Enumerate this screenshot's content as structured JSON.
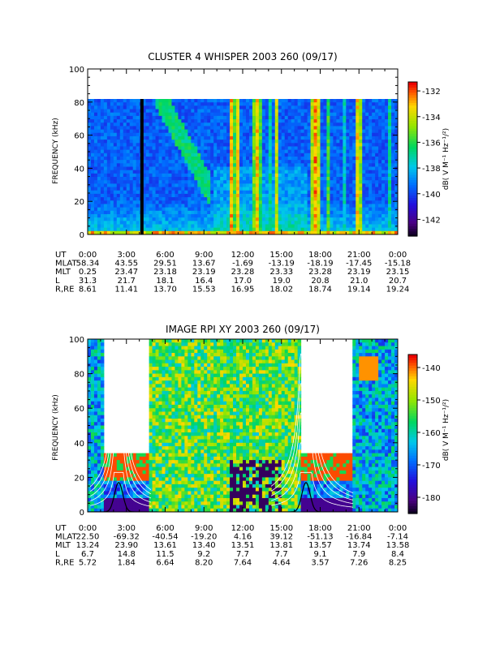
{
  "chart_data": [
    {
      "type": "heatmap",
      "title": "CLUSTER 4 WHISPER 2003 260 (09/17)",
      "ylabel": "FREQUENCY (kHz)",
      "ylim": [
        0,
        100
      ],
      "y_ticks": [
        "0",
        "20",
        "40",
        "60",
        "80",
        "100"
      ],
      "x_range_hours": [
        0,
        24
      ],
      "x_ticks": [
        "0:00",
        "3:00",
        "6:00",
        "9:00",
        "12:00",
        "15:00",
        "18:00",
        "21:00",
        "0:00"
      ],
      "data_frequency_max_khz": 80,
      "colorbar": {
        "label": "dB( V M⁻¹ Hz⁻¹/²)",
        "range": [
          -143.3,
          -131.3
        ],
        "ticks": [
          "-132",
          "-134",
          "-136",
          "-138",
          "-140",
          "-142"
        ],
        "tick_values": [
          -132,
          -134,
          -136,
          -138,
          -140,
          -142
        ]
      },
      "orbit_table": {
        "rows": [
          {
            "label": "UT",
            "values": [
              "0:00",
              "3:00",
              "6:00",
              "9:00",
              "12:00",
              "15:00",
              "18:00",
              "21:00",
              "0:00"
            ]
          },
          {
            "label": "MLAT",
            "values": [
              "58.34",
              "43.55",
              "29.51",
              "13.67",
              "-1.69",
              "-13.19",
              "-18.19",
              "-17.45",
              "-15.18"
            ]
          },
          {
            "label": "MLT",
            "values": [
              "0.25",
              "23.47",
              "23.18",
              "23.19",
              "23.28",
              "23.33",
              "23.28",
              "23.19",
              "23.15"
            ]
          },
          {
            "label": "L",
            "values": [
              "31.3",
              "21.7",
              "18.1",
              "16.4",
              "17.0",
              "19.0",
              "20.8",
              "21.0",
              "20.7"
            ]
          },
          {
            "label": "R,RE",
            "values": [
              "8.61",
              "11.41",
              "13.70",
              "15.53",
              "16.95",
              "18.02",
              "18.74",
              "19.14",
              "19.24"
            ]
          }
        ]
      }
    },
    {
      "type": "heatmap",
      "title": "IMAGE RPI XY 2003 260 (09/17)",
      "ylabel": "FREQUENCY (kHz)",
      "ylim": [
        0,
        100
      ],
      "y_ticks": [
        "0",
        "20",
        "40",
        "60",
        "80",
        "100"
      ],
      "x_range_hours": [
        0,
        24
      ],
      "x_ticks": [
        "0:00",
        "3:00",
        "6:00",
        "9:00",
        "12:00",
        "15:00",
        "18:00",
        "21:00",
        "0:00"
      ],
      "data_gaps_hours": [
        [
          1.2,
          4.7
        ],
        [
          16.4,
          20.4
        ]
      ],
      "colorbar": {
        "label": "dB( V M⁻¹ Hz⁻¹/²)",
        "range": [
          -185,
          -136
        ],
        "ticks": [
          "-140",
          "-150",
          "-160",
          "-170",
          "-180"
        ],
        "tick_values": [
          -140,
          -150,
          -160,
          -170,
          -180
        ]
      },
      "orbit_table": {
        "rows": [
          {
            "label": "UT",
            "values": [
              "0:00",
              "3:00",
              "6:00",
              "9:00",
              "12:00",
              "15:00",
              "18:00",
              "21:00",
              "0:00"
            ]
          },
          {
            "label": "MLAT",
            "values": [
              "22.50",
              "-69.32",
              "-40.54",
              "-19.20",
              "4.16",
              "39.12",
              "-51.13",
              "-16.84",
              "-7.14"
            ]
          },
          {
            "label": "MLT",
            "values": [
              "13.24",
              "23.90",
              "13.61",
              "13.40",
              "13.51",
              "13.81",
              "13.57",
              "13.74",
              "13.58"
            ]
          },
          {
            "label": "L",
            "values": [
              "6.7",
              "14.8",
              "11.5",
              "9.2",
              "7.7",
              "7.7",
              "9.1",
              "7.9",
              "8.4"
            ]
          },
          {
            "label": "R,RE",
            "values": [
              "5.72",
              "1.84",
              "6.64",
              "8.20",
              "7.64",
              "4.64",
              "3.57",
              "7.26",
              "8.25"
            ]
          }
        ]
      }
    }
  ]
}
